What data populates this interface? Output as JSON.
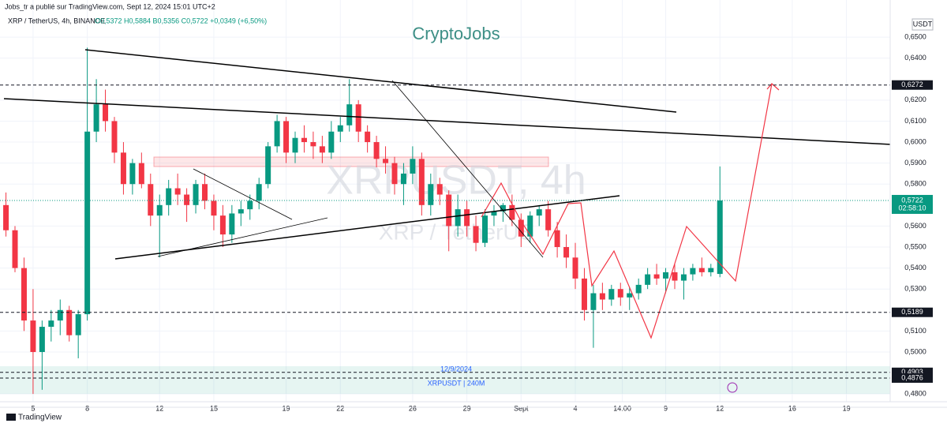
{
  "header": {
    "publisher": "Jobs_tr a publié sur TradingView.com, Sept 12, 2024 15:01 UTC+2",
    "symbol": "XRP / TetherUS, 4h, BINANCE",
    "ohlc": "O0,5372 H0,5884 B0,5356 C0,5722 +0,0349 (+6,50%)",
    "currency": "USDT"
  },
  "chart_data": {
    "type": "candlestick",
    "title": "CryptoJobs",
    "watermark": "XRPUSDT, 4h",
    "watermark_sub": "XRP / TetherUS",
    "up_color": "#089981",
    "down_color": "#f23645",
    "xlim": [
      -1.83,
      47.42
    ],
    "ylim": [
      0.4763,
      0.6677
    ],
    "xticks": [
      {
        "value": 0,
        "label": "5"
      },
      {
        "value": 3,
        "label": "8"
      },
      {
        "value": 7,
        "label": "12"
      },
      {
        "value": 10,
        "label": "15"
      },
      {
        "value": 14,
        "label": "19"
      },
      {
        "value": 17,
        "label": "22"
      },
      {
        "value": 21,
        "label": "26"
      },
      {
        "value": 24,
        "label": "29"
      },
      {
        "value": 27,
        "label": "Sept"
      },
      {
        "value": 30,
        "label": "4"
      },
      {
        "value": 32.6,
        "label": "14:00"
      },
      {
        "value": 35,
        "label": "9"
      },
      {
        "value": 38,
        "label": "12"
      },
      {
        "value": 42,
        "label": "16"
      },
      {
        "value": 45,
        "label": "19"
      }
    ],
    "yticks": [
      {
        "value": 0.65,
        "label": "0,6500"
      },
      {
        "value": 0.64,
        "label": "0,6400"
      },
      {
        "value": 0.62,
        "label": "0,6200"
      },
      {
        "value": 0.61,
        "label": "0,6100"
      },
      {
        "value": 0.6,
        "label": "0,6000"
      },
      {
        "value": 0.59,
        "label": "0,5900"
      },
      {
        "value": 0.58,
        "label": "0,5800"
      },
      {
        "value": 0.56,
        "label": "0,5600"
      },
      {
        "value": 0.55,
        "label": "0,5500"
      },
      {
        "value": 0.54,
        "label": "0,5400"
      },
      {
        "value": 0.53,
        "label": "0,5300"
      },
      {
        "value": 0.51,
        "label": "0,5100"
      },
      {
        "value": 0.5,
        "label": "0,5000"
      },
      {
        "value": 0.48,
        "label": "0,4800"
      }
    ],
    "levels": [
      {
        "value": 0.6272,
        "label": "0,6272"
      },
      {
        "value": 0.5189,
        "label": "0,5189"
      },
      {
        "value": 0.4903,
        "label": "0,4903"
      },
      {
        "value": 0.4876,
        "label": "0,4876"
      }
    ],
    "last_price": {
      "value": 0.5722,
      "label": "0,5722",
      "countdown": "02:58:10"
    },
    "zone_labels": [
      "12/9/2024",
      "XRPUSDT | 240M"
    ],
    "x": [
      -1.5,
      -1,
      -0.5,
      0,
      0.5,
      1,
      1.5,
      2,
      2.5,
      3,
      3.5,
      4,
      4.5,
      5,
      5.5,
      6,
      6.5,
      7,
      7.5,
      8,
      8.5,
      9,
      9.5,
      10,
      10.5,
      11,
      11.5,
      12,
      12.5,
      13,
      13.5,
      14,
      14.5,
      15,
      15.5,
      16,
      16.5,
      17,
      17.5,
      18,
      18.5,
      19,
      19.5,
      20,
      20.5,
      21,
      21.5,
      22,
      22.5,
      23,
      23.5,
      24,
      24.5,
      25,
      25.5,
      26,
      26.5,
      27,
      27.5,
      28,
      28.5,
      29,
      29.5,
      30,
      30.5,
      31,
      31.5,
      32,
      32.5,
      33,
      33.5,
      34,
      34.5,
      35,
      35.5,
      36,
      36.5,
      37,
      37.5,
      38
    ],
    "open": [
      0.57,
      0.558,
      0.54,
      0.515,
      0.5,
      0.512,
      0.515,
      0.52,
      0.508,
      0.518,
      0.605,
      0.618,
      0.61,
      0.595,
      0.58,
      0.59,
      0.58,
      0.565,
      0.57,
      0.578,
      0.575,
      0.57,
      0.58,
      0.572,
      0.565,
      0.556,
      0.566,
      0.568,
      0.572,
      0.58,
      0.598,
      0.61,
      0.595,
      0.602,
      0.6,
      0.598,
      0.595,
      0.605,
      0.608,
      0.618,
      0.605,
      0.6,
      0.592,
      0.59,
      0.58,
      0.585,
      0.592,
      0.57,
      0.58,
      0.575,
      0.56,
      0.568,
      0.56,
      0.552,
      0.565,
      0.567,
      0.57,
      0.563,
      0.555,
      0.565,
      0.568,
      0.558,
      0.55,
      0.545,
      0.535,
      0.52,
      0.528,
      0.525,
      0.53,
      0.526,
      0.528,
      0.532,
      0.537,
      0.535,
      0.538,
      0.534,
      0.537,
      0.54,
      0.538,
      0.5372
    ],
    "high": [
      0.576,
      0.56,
      0.545,
      0.53,
      0.515,
      0.52,
      0.525,
      0.522,
      0.52,
      0.645,
      0.63,
      0.625,
      0.612,
      0.6,
      0.592,
      0.595,
      0.585,
      0.575,
      0.582,
      0.585,
      0.578,
      0.582,
      0.585,
      0.575,
      0.57,
      0.57,
      0.572,
      0.575,
      0.583,
      0.6,
      0.613,
      0.612,
      0.605,
      0.608,
      0.605,
      0.603,
      0.61,
      0.612,
      0.63,
      0.62,
      0.608,
      0.603,
      0.598,
      0.593,
      0.59,
      0.598,
      0.595,
      0.585,
      0.583,
      0.577,
      0.575,
      0.572,
      0.565,
      0.568,
      0.57,
      0.571,
      0.575,
      0.566,
      0.567,
      0.57,
      0.572,
      0.562,
      0.556,
      0.552,
      0.54,
      0.532,
      0.533,
      0.532,
      0.533,
      0.531,
      0.535,
      0.54,
      0.542,
      0.54,
      0.542,
      0.54,
      0.542,
      0.545,
      0.542,
      0.5884
    ],
    "low": [
      0.555,
      0.538,
      0.51,
      0.48,
      0.482,
      0.505,
      0.508,
      0.505,
      0.497,
      0.515,
      0.6,
      0.605,
      0.59,
      0.575,
      0.575,
      0.578,
      0.56,
      0.545,
      0.565,
      0.57,
      0.562,
      0.566,
      0.568,
      0.558,
      0.55,
      0.552,
      0.56,
      0.563,
      0.568,
      0.578,
      0.595,
      0.59,
      0.59,
      0.595,
      0.592,
      0.59,
      0.592,
      0.6,
      0.605,
      0.6,
      0.595,
      0.588,
      0.585,
      0.575,
      0.57,
      0.58,
      0.565,
      0.565,
      0.57,
      0.548,
      0.555,
      0.555,
      0.548,
      0.55,
      0.56,
      0.562,
      0.56,
      0.55,
      0.552,
      0.56,
      0.555,
      0.545,
      0.54,
      0.53,
      0.515,
      0.502,
      0.52,
      0.522,
      0.522,
      0.52,
      0.525,
      0.53,
      0.532,
      0.528,
      0.53,
      0.525,
      0.534,
      0.536,
      0.536,
      0.5356
    ],
    "close": [
      0.558,
      0.54,
      0.515,
      0.5,
      0.512,
      0.515,
      0.52,
      0.508,
      0.518,
      0.605,
      0.618,
      0.61,
      0.595,
      0.58,
      0.59,
      0.58,
      0.565,
      0.57,
      0.578,
      0.575,
      0.57,
      0.58,
      0.572,
      0.565,
      0.556,
      0.566,
      0.568,
      0.572,
      0.58,
      0.598,
      0.61,
      0.595,
      0.602,
      0.6,
      0.598,
      0.595,
      0.605,
      0.608,
      0.618,
      0.605,
      0.6,
      0.592,
      0.59,
      0.58,
      0.585,
      0.592,
      0.57,
      0.58,
      0.575,
      0.56,
      0.568,
      0.56,
      0.552,
      0.565,
      0.567,
      0.57,
      0.563,
      0.555,
      0.565,
      0.568,
      0.558,
      0.55,
      0.545,
      0.535,
      0.52,
      0.528,
      0.525,
      0.53,
      0.526,
      0.528,
      0.532,
      0.537,
      0.535,
      0.538,
      0.534,
      0.537,
      0.54,
      0.538,
      0.54,
      0.5722
    ]
  },
  "footer": {
    "brand": "TradingView"
  }
}
